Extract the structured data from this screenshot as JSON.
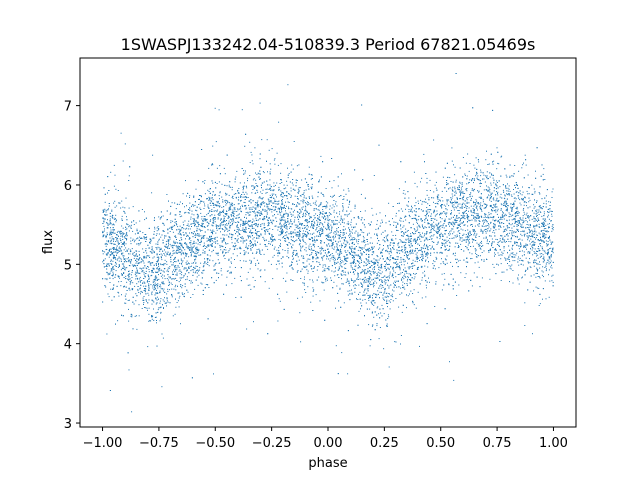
{
  "chart_data": {
    "type": "scatter",
    "title": "1SWASPJ133242.04-510839.3 Period 67821.05469s",
    "xlabel": "phase",
    "ylabel": "flux",
    "xlim": [
      -1.1,
      1.1
    ],
    "ylim": [
      2.95,
      7.6
    ],
    "xticks": [
      -1.0,
      -0.75,
      -0.5,
      -0.25,
      0.0,
      0.25,
      0.5,
      0.75,
      1.0
    ],
    "xtick_labels": [
      "−1.00",
      "−0.75",
      "−0.50",
      "−0.25",
      "0.00",
      "0.25",
      "0.50",
      "0.75",
      "1.00"
    ],
    "yticks": [
      3,
      4,
      5,
      6,
      7
    ],
    "ytick_labels": [
      "3",
      "4",
      "5",
      "6",
      "7"
    ],
    "grid": false,
    "marker_color": "#1f77b4",
    "light_curve": {
      "phase": [
        -1.0,
        -0.9,
        -0.8,
        -0.75,
        -0.7,
        -0.6,
        -0.5,
        -0.4,
        -0.3,
        -0.25,
        -0.2,
        -0.1,
        0.0,
        0.1,
        0.2,
        0.25,
        0.3,
        0.4,
        0.5,
        0.6,
        0.7,
        0.75,
        0.8,
        0.9,
        1.0
      ],
      "flux": [
        5.3,
        5.15,
        4.85,
        4.95,
        5.1,
        5.3,
        5.45,
        5.55,
        5.6,
        5.6,
        5.55,
        5.45,
        5.3,
        5.15,
        4.85,
        4.95,
        5.1,
        5.3,
        5.45,
        5.55,
        5.6,
        5.6,
        5.55,
        5.45,
        5.3
      ]
    }
  }
}
